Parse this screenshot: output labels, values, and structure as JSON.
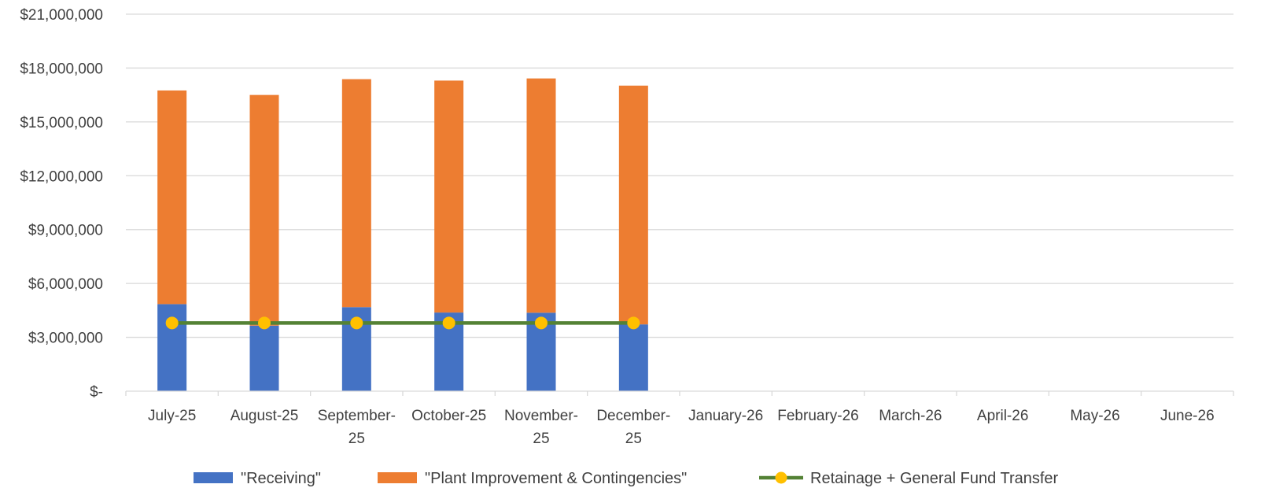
{
  "chart_data": {
    "type": "bar",
    "stacked": true,
    "categories": [
      [
        "July-25"
      ],
      [
        "August-25"
      ],
      [
        "September-",
        "25"
      ],
      [
        "October-25"
      ],
      [
        "November-",
        "25"
      ],
      [
        "December-",
        "25"
      ],
      [
        "January-26"
      ],
      [
        "February-26"
      ],
      [
        "March-26"
      ],
      [
        "April-26"
      ],
      [
        "May-26"
      ],
      [
        "June-26"
      ]
    ],
    "series": [
      {
        "name": "\"Receiving\"",
        "kind": "bar",
        "color": "#4472C4",
        "values": [
          4850000,
          3650000,
          4680000,
          4380000,
          4370000,
          3720000,
          null,
          null,
          null,
          null,
          null,
          null
        ]
      },
      {
        "name": "\"Plant Improvement & Contingencies\"",
        "kind": "bar",
        "color": "#ED7D31",
        "values": [
          11900000,
          12850000,
          12700000,
          12920000,
          13050000,
          13300000,
          null,
          null,
          null,
          null,
          null,
          null
        ]
      },
      {
        "name": "Retainage + General Fund Transfer",
        "kind": "line",
        "color": "#548235",
        "marker_color": "#FFC000",
        "values": [
          3800000,
          3800000,
          3800000,
          3800000,
          3800000,
          3800000,
          null,
          null,
          null,
          null,
          null,
          null
        ]
      }
    ],
    "y_ticks": [
      {
        "value": 0,
        "label": "$-"
      },
      {
        "value": 3000000,
        "label": "$3,000,000"
      },
      {
        "value": 6000000,
        "label": "$6,000,000"
      },
      {
        "value": 9000000,
        "label": "$9,000,000"
      },
      {
        "value": 12000000,
        "label": "$12,000,000"
      },
      {
        "value": 15000000,
        "label": "$15,000,000"
      },
      {
        "value": 18000000,
        "label": "$18,000,000"
      },
      {
        "value": 21000000,
        "label": "$21,000,000"
      }
    ],
    "ylim": [
      0,
      21000000
    ],
    "grid": true,
    "legend": "bottom",
    "title": "",
    "xlabel": "",
    "ylabel": ""
  }
}
